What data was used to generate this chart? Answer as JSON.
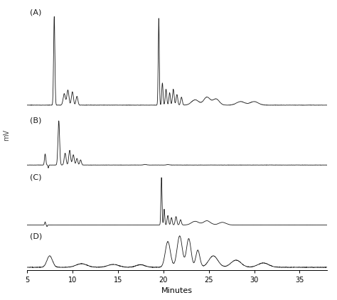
{
  "title": "",
  "xlabel": "Minutes",
  "ylabel": "mV",
  "xlim": [
    5,
    38
  ],
  "xticks": [
    5,
    10,
    15,
    20,
    25,
    30,
    35
  ],
  "panels": [
    "(A)",
    "(B)",
    "(C)",
    "(D)"
  ],
  "background_color": "#ffffff",
  "line_color": "#1a1a1a",
  "line_width": 0.6,
  "figsize": [
    4.74,
    4.22
  ],
  "dpi": 100
}
